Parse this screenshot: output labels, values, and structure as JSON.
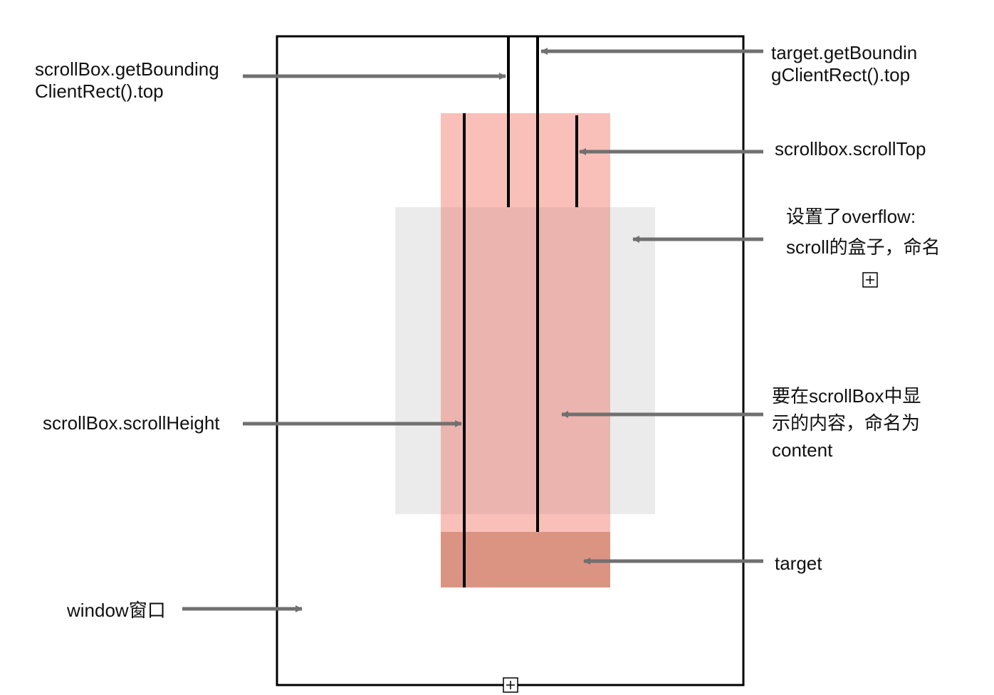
{
  "diagram": {
    "labels": {
      "scrollbox_rect_top": [
        "scrollBox.getBounding",
        "ClientRect().top"
      ],
      "target_rect_top": [
        "target.getBoundin",
        "gClientRect().top"
      ],
      "scrolltop": "scrollbox.scrollTop",
      "overflow_box": [
        "设置了overflow:",
        "scroll的盒子，命名"
      ],
      "scroll_height": "scrollBox.scrollHeight",
      "content": [
        "要在scrollBox中显",
        "示的内容，命名为",
        "content"
      ],
      "target": "target",
      "window": "window窗口"
    },
    "colors": {
      "window_border": "#000000",
      "scroll_box_fill": "#ebebeb",
      "content_fill": "#f8c0b8",
      "overlap_fill": "#ecb4ae",
      "target_fill": "#dc9482",
      "arrow": "#707070",
      "marker_line": "#000000"
    },
    "icons": [
      "expand-handle-icon",
      "expand-handle-icon"
    ]
  }
}
